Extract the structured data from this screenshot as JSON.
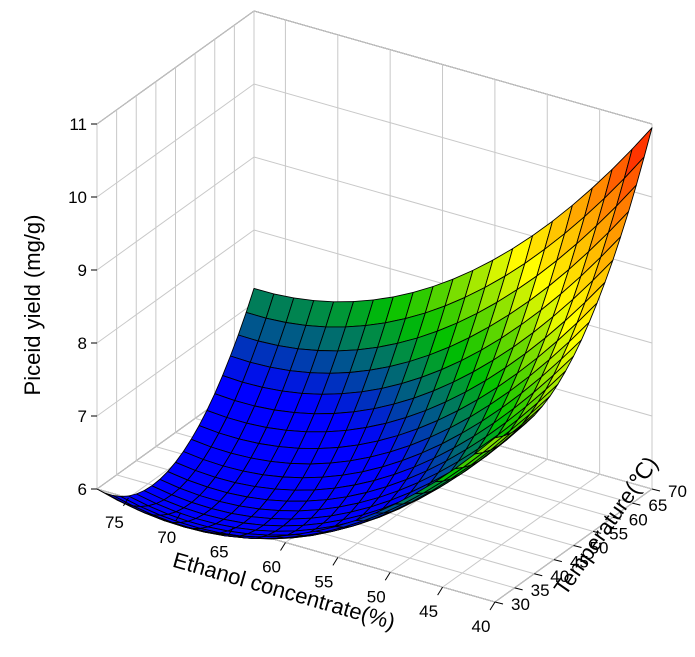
{
  "chart_data": {
    "type": "surface3d",
    "title": "",
    "xlabel": "Ethanol concentrate(%)",
    "ylabel": "Temperature(℃)",
    "zlabel": "Piceid yield (mg/g)",
    "x_ticks": [
      40,
      45,
      50,
      55,
      60,
      65,
      70,
      75
    ],
    "y_ticks": [
      30,
      35,
      40,
      45,
      50,
      55,
      60,
      65,
      70
    ],
    "z_ticks": [
      6,
      7,
      8,
      9,
      10,
      11
    ],
    "xlim": [
      40,
      78
    ],
    "ylim": [
      30,
      70
    ],
    "zlim": [
      6,
      11
    ],
    "grid": true,
    "colormap": [
      "#0000ff",
      "#00c000",
      "#ffff00",
      "#ff8c00",
      "#ff0000"
    ],
    "surface_corners": [
      {
        "x": 78,
        "y": 30,
        "z": 6.0
      },
      {
        "x": 40,
        "y": 30,
        "z": 8.25
      },
      {
        "x": 78,
        "y": 70,
        "z": 7.2
      },
      {
        "x": 40,
        "y": 70,
        "z": 10.95
      }
    ],
    "surface_peak": {
      "x": 42,
      "y": 63,
      "z": 11.05
    }
  }
}
